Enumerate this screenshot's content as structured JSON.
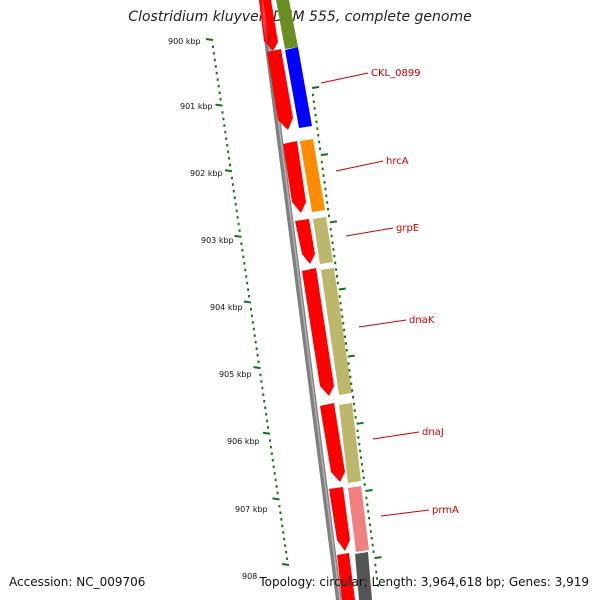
{
  "title": "Clostridium kluyveri DSM 555, complete genome",
  "accession": "Accession: NC_009706",
  "summary": "Topology: circular; Length: 3,964,618 bp; Genes: 3,919",
  "ticks": [
    "900 kbp",
    "901 kbp",
    "902 kbp",
    "903 kbp",
    "904 kbp",
    "905 kbp",
    "906 kbp",
    "907 kbp",
    "908"
  ],
  "genes": [
    {
      "name": "CKL_0899",
      "color": "#0000ff"
    },
    {
      "name": "hrcA",
      "color": "#ff8c00"
    },
    {
      "name": "grpE",
      "color": "#bdb76b"
    },
    {
      "name": "dnaK",
      "color": "#bdb76b"
    },
    {
      "name": "dnaJ",
      "color": "#bdb76b"
    },
    {
      "name": "prmA",
      "color": "#f08080"
    }
  ],
  "colors": {
    "cds": "#ff0000",
    "backbone": "#808080",
    "tick": "#117711",
    "label": "#cc0000",
    "olive": "#6b8e23",
    "dark_gene": "#555555"
  }
}
